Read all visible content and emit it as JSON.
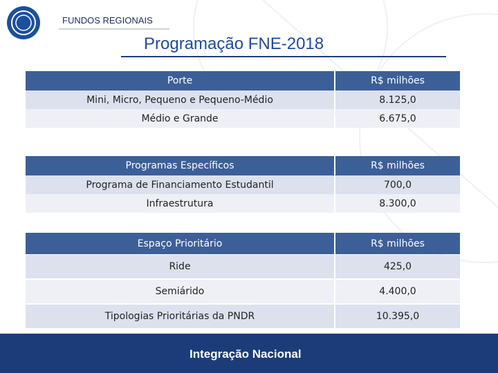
{
  "header": {
    "label": "FUNDOS REGIONAIS",
    "title": "Programação FNE-2018"
  },
  "tables": [
    {
      "header": [
        "Porte",
        "R$ milhões"
      ],
      "rows": [
        [
          "Mini, Micro, Pequeno e Pequeno-Médio",
          "8.125,0"
        ],
        [
          "Médio e Grande",
          "6.675,0"
        ]
      ]
    },
    {
      "header": [
        "Programas Específicos",
        "R$ milhões"
      ],
      "rows": [
        [
          "Programa de Financiamento Estudantil",
          "700,0"
        ],
        [
          "Infraestrutura",
          "8.300,0"
        ]
      ]
    },
    {
      "header": [
        "Espaço Prioritário",
        "R$ milhões"
      ],
      "rows": [
        [
          "Ride",
          "425,0"
        ],
        [
          "Semiárido",
          "4.400,0"
        ],
        [
          "Tipologias Prioritárias da PNDR",
          "10.395,0"
        ]
      ]
    }
  ],
  "footer": {
    "brand": "Integração Nacional"
  }
}
